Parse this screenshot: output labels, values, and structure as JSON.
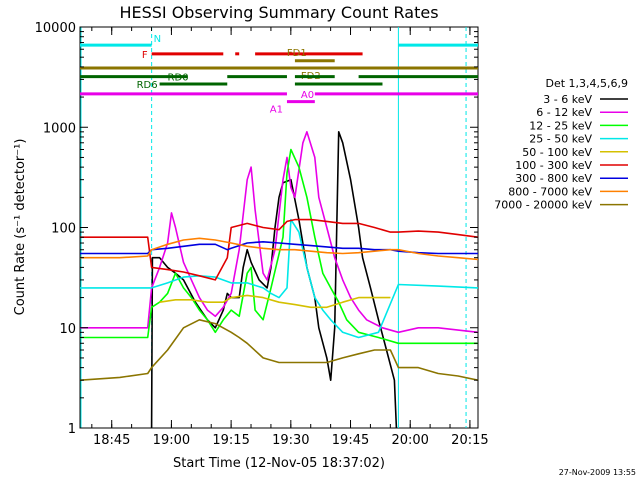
{
  "chart_data": {
    "type": "line",
    "title": "HESSI Observing Summary Count Rates",
    "xlabel": "Start Time (12-Nov-05 18:37:02)",
    "ylabel": "Count Rate (s⁻¹ detector⁻¹)",
    "yscale": "log",
    "ylim": [
      1,
      10000
    ],
    "xlim_minutes_since_start": [
      0,
      100
    ],
    "x_ticks": [
      "18:45",
      "19:00",
      "19:15",
      "19:30",
      "19:45",
      "20:00",
      "20:15"
    ],
    "y_ticks": [
      "1",
      "10",
      "100",
      "1000",
      "10000"
    ],
    "legend_title": "Det 1,3,4,5,6,9",
    "legend_position": "right",
    "footer": "27-Nov-2009 13:55",
    "flags": [
      {
        "label": "N",
        "color": "#00e8e8",
        "y": 6600,
        "segments": [
          [
            0,
            18
          ],
          [
            80,
            100
          ]
        ]
      },
      {
        "label": "F",
        "color": "#e00000",
        "y": 5400,
        "segments": [
          [
            18,
            36
          ],
          [
            39,
            40
          ],
          [
            44,
            71
          ]
        ]
      },
      {
        "label": "FD1",
        "color": "#8b7500",
        "y": 4600,
        "segments": [
          [
            54,
            64
          ]
        ]
      },
      {
        "label": "FD2",
        "color": "#8b7500",
        "y": 3900,
        "segments": [
          [
            0,
            100
          ]
        ]
      },
      {
        "label": "RD0",
        "color": "#006400",
        "y": 3200,
        "segments": [
          [
            0,
            27
          ],
          [
            37,
            52
          ],
          [
            54,
            64
          ],
          [
            70,
            100
          ]
        ]
      },
      {
        "label": "RD6",
        "color": "#006400",
        "y": 2700,
        "segments": [
          [
            20,
            37
          ],
          [
            54,
            76
          ]
        ]
      },
      {
        "label": "A0",
        "color": "#e800e8",
        "y": 2150,
        "segments": [
          [
            0,
            52
          ],
          [
            59,
            100
          ]
        ]
      },
      {
        "label": "A1",
        "color": "#e800e8",
        "y": 1800,
        "segments": [
          [
            52,
            59
          ]
        ]
      }
    ],
    "series": [
      {
        "name": "3 - 6 keV",
        "color": "#000000",
        "points": [
          [
            18,
            1
          ],
          [
            18.2,
            50
          ],
          [
            20,
            50
          ],
          [
            22,
            40
          ],
          [
            24,
            35
          ],
          [
            26,
            30
          ],
          [
            29,
            18
          ],
          [
            32,
            12
          ],
          [
            34,
            10
          ],
          [
            36,
            15
          ],
          [
            37,
            22
          ],
          [
            38,
            20
          ],
          [
            40,
            20
          ],
          [
            41,
            40
          ],
          [
            42,
            60
          ],
          [
            43,
            45
          ],
          [
            45,
            30
          ],
          [
            47,
            25
          ],
          [
            48,
            40
          ],
          [
            49,
            100
          ],
          [
            50,
            200
          ],
          [
            51,
            280
          ],
          [
            53,
            300
          ],
          [
            55,
            120
          ],
          [
            57,
            40
          ],
          [
            59,
            20
          ],
          [
            60,
            10
          ],
          [
            62,
            5
          ],
          [
            63,
            3
          ],
          [
            64,
            10
          ],
          [
            65,
            900
          ],
          [
            66,
            700
          ],
          [
            68,
            300
          ],
          [
            70,
            100
          ],
          [
            71,
            50
          ],
          [
            73,
            25
          ],
          [
            75,
            12
          ],
          [
            77,
            6
          ],
          [
            79,
            3
          ],
          [
            79.5,
            1
          ]
        ]
      },
      {
        "name": "6 - 12 keV",
        "color": "#e800e8",
        "points": [
          [
            0,
            10
          ],
          [
            10,
            10
          ],
          [
            17,
            10
          ],
          [
            18,
            25
          ],
          [
            20,
            40
          ],
          [
            22,
            70
          ],
          [
            23,
            140
          ],
          [
            24,
            100
          ],
          [
            26,
            45
          ],
          [
            28,
            30
          ],
          [
            30,
            20
          ],
          [
            32,
            15
          ],
          [
            34,
            13
          ],
          [
            36,
            16
          ],
          [
            38,
            22
          ],
          [
            40,
            60
          ],
          [
            42,
            300
          ],
          [
            43,
            400
          ],
          [
            44,
            150
          ],
          [
            46,
            35
          ],
          [
            47,
            30
          ],
          [
            49,
            60
          ],
          [
            51,
            300
          ],
          [
            52,
            500
          ],
          [
            53,
            250
          ],
          [
            54,
            200
          ],
          [
            56,
            700
          ],
          [
            57,
            900
          ],
          [
            59,
            500
          ],
          [
            60,
            200
          ],
          [
            62,
            100
          ],
          [
            64,
            50
          ],
          [
            66,
            30
          ],
          [
            68,
            20
          ],
          [
            70,
            15
          ],
          [
            72,
            12
          ],
          [
            76,
            10
          ],
          [
            80,
            9
          ],
          [
            85,
            10
          ],
          [
            90,
            10
          ],
          [
            100,
            9
          ]
        ]
      },
      {
        "name": "12 - 25 keV",
        "color": "#00ff00",
        "points": [
          [
            0,
            8
          ],
          [
            10,
            8
          ],
          [
            17,
            8
          ],
          [
            18,
            16
          ],
          [
            20,
            18
          ],
          [
            22,
            22
          ],
          [
            24,
            35
          ],
          [
            26,
            25
          ],
          [
            28,
            20
          ],
          [
            30,
            15
          ],
          [
            32,
            12
          ],
          [
            34,
            9
          ],
          [
            36,
            12
          ],
          [
            38,
            15
          ],
          [
            40,
            13
          ],
          [
            42,
            35
          ],
          [
            43,
            40
          ],
          [
            44,
            15
          ],
          [
            46,
            12
          ],
          [
            48,
            25
          ],
          [
            51,
            80
          ],
          [
            52,
            350
          ],
          [
            53,
            600
          ],
          [
            55,
            400
          ],
          [
            57,
            200
          ],
          [
            59,
            80
          ],
          [
            61,
            35
          ],
          [
            63,
            25
          ],
          [
            65,
            18
          ],
          [
            67,
            12
          ],
          [
            70,
            9
          ],
          [
            75,
            8
          ],
          [
            80,
            7
          ],
          [
            90,
            7
          ],
          [
            100,
            7
          ]
        ]
      },
      {
        "name": "25 - 50 keV",
        "color": "#00e8e8",
        "points": [
          [
            0,
            25
          ],
          [
            10,
            25
          ],
          [
            17,
            25
          ],
          [
            18,
            25
          ],
          [
            22,
            28
          ],
          [
            26,
            32
          ],
          [
            30,
            33
          ],
          [
            34,
            32
          ],
          [
            38,
            28
          ],
          [
            42,
            28
          ],
          [
            46,
            25
          ],
          [
            48,
            22
          ],
          [
            50,
            20
          ],
          [
            52,
            25
          ],
          [
            53,
            120
          ],
          [
            55,
            90
          ],
          [
            57,
            40
          ],
          [
            59,
            20
          ],
          [
            61,
            15
          ],
          [
            63,
            12
          ],
          [
            66,
            9
          ],
          [
            70,
            8
          ],
          [
            75,
            9
          ],
          [
            80,
            27
          ],
          [
            90,
            26
          ],
          [
            100,
            25
          ]
        ]
      },
      {
        "name": "50 - 100 keV",
        "color": "#d4c000",
        "points": [
          [
            20,
            18
          ],
          [
            24,
            19
          ],
          [
            28,
            19
          ],
          [
            32,
            18
          ],
          [
            36,
            18
          ],
          [
            38,
            20
          ],
          [
            42,
            21
          ],
          [
            46,
            20
          ],
          [
            50,
            18
          ],
          [
            54,
            17
          ],
          [
            58,
            16
          ],
          [
            62,
            16
          ],
          [
            66,
            18
          ],
          [
            70,
            20
          ],
          [
            74,
            20
          ],
          [
            78,
            20
          ]
        ]
      },
      {
        "name": "100 - 300 keV",
        "color": "#e00000",
        "points": [
          [
            0,
            80
          ],
          [
            10,
            80
          ],
          [
            17,
            80
          ],
          [
            18,
            40
          ],
          [
            22,
            38
          ],
          [
            26,
            36
          ],
          [
            30,
            33
          ],
          [
            34,
            30
          ],
          [
            37,
            50
          ],
          [
            38,
            100
          ],
          [
            42,
            110
          ],
          [
            46,
            100
          ],
          [
            50,
            95
          ],
          [
            52,
            115
          ],
          [
            54,
            120
          ],
          [
            58,
            120
          ],
          [
            62,
            115
          ],
          [
            66,
            110
          ],
          [
            70,
            110
          ],
          [
            74,
            100
          ],
          [
            78,
            90
          ],
          [
            80,
            90
          ],
          [
            85,
            92
          ],
          [
            90,
            90
          ],
          [
            95,
            85
          ],
          [
            100,
            80
          ]
        ]
      },
      {
        "name": "300 - 800 keV",
        "color": "#0000e0",
        "points": [
          [
            0,
            55
          ],
          [
            10,
            55
          ],
          [
            17,
            55
          ],
          [
            18,
            60
          ],
          [
            22,
            62
          ],
          [
            26,
            65
          ],
          [
            30,
            68
          ],
          [
            34,
            68
          ],
          [
            37,
            60
          ],
          [
            38,
            62
          ],
          [
            42,
            70
          ],
          [
            46,
            72
          ],
          [
            50,
            70
          ],
          [
            54,
            68
          ],
          [
            58,
            66
          ],
          [
            62,
            64
          ],
          [
            66,
            62
          ],
          [
            70,
            62
          ],
          [
            74,
            60
          ],
          [
            78,
            60
          ],
          [
            80,
            58
          ],
          [
            85,
            56
          ],
          [
            90,
            55
          ],
          [
            95,
            55
          ],
          [
            100,
            55
          ]
        ]
      },
      {
        "name": "800 - 7000 keV",
        "color": "#ff8000",
        "points": [
          [
            0,
            50
          ],
          [
            10,
            50
          ],
          [
            17,
            52
          ],
          [
            18,
            60
          ],
          [
            22,
            68
          ],
          [
            26,
            75
          ],
          [
            30,
            78
          ],
          [
            34,
            75
          ],
          [
            38,
            70
          ],
          [
            42,
            65
          ],
          [
            46,
            62
          ],
          [
            50,
            60
          ],
          [
            54,
            60
          ],
          [
            58,
            58
          ],
          [
            62,
            56
          ],
          [
            66,
            55
          ],
          [
            70,
            56
          ],
          [
            74,
            58
          ],
          [
            78,
            60
          ],
          [
            80,
            60
          ],
          [
            85,
            55
          ],
          [
            90,
            52
          ],
          [
            95,
            50
          ],
          [
            100,
            48
          ]
        ]
      },
      {
        "name": "7000 - 20000 keV",
        "color": "#8b7500",
        "points": [
          [
            0,
            3
          ],
          [
            10,
            3.2
          ],
          [
            17,
            3.5
          ],
          [
            18,
            4
          ],
          [
            22,
            6
          ],
          [
            26,
            10
          ],
          [
            30,
            12
          ],
          [
            34,
            11
          ],
          [
            38,
            9
          ],
          [
            40,
            8
          ],
          [
            42,
            7
          ],
          [
            46,
            5
          ],
          [
            50,
            4.5
          ],
          [
            54,
            4.5
          ],
          [
            58,
            4.5
          ],
          [
            62,
            4.5
          ],
          [
            66,
            5
          ],
          [
            70,
            5.5
          ],
          [
            74,
            6
          ],
          [
            78,
            6
          ],
          [
            80,
            4
          ],
          [
            85,
            4
          ],
          [
            90,
            3.5
          ],
          [
            95,
            3.3
          ],
          [
            100,
            3
          ]
        ]
      }
    ]
  }
}
